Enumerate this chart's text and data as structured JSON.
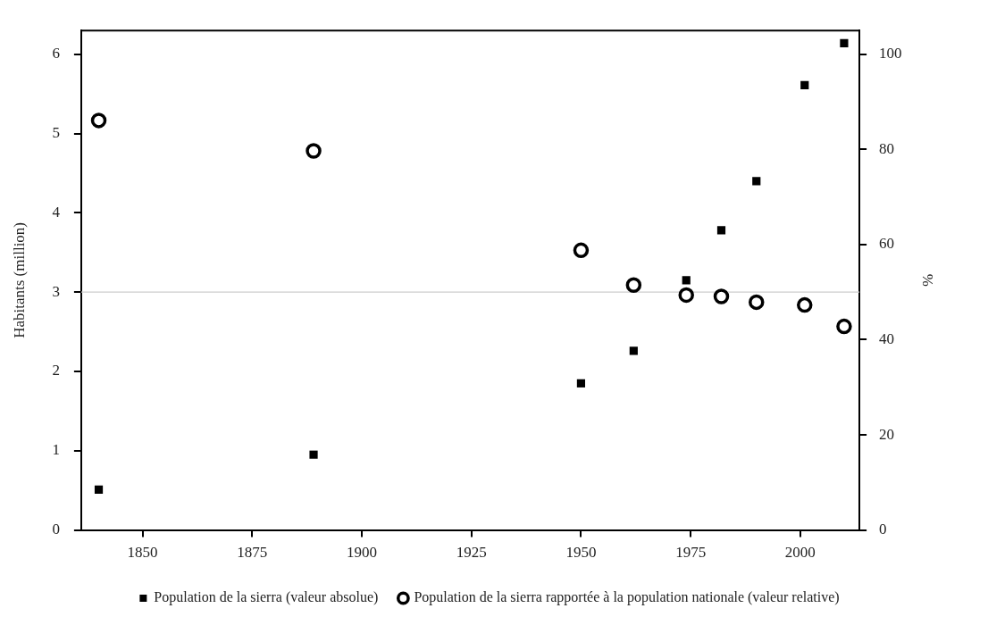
{
  "chart_data": {
    "type": "scatter",
    "xlabel": null,
    "ylabel": "Habitants (million)",
    "y2label": "%",
    "x": [
      1840,
      1889,
      1950,
      1962,
      1974,
      1982,
      1990,
      2001,
      2010
    ],
    "series": [
      {
        "name": "Population de la sierra (valeur absolue)",
        "color": "#000000",
        "marker": "square",
        "values": [
          0.51,
          0.95,
          1.85,
          2.26,
          3.15,
          3.78,
          4.4,
          5.61,
          6.14
        ]
      },
      {
        "name": "Population de la sierra rapportée à la population nationale (valeur relative)",
        "color": "#000000",
        "marker": "circle",
        "axis": "y2",
        "values": [
          86.1,
          79.7,
          58.8,
          51.5,
          49.4,
          49.1,
          47.9,
          47.3,
          42.8
        ]
      }
    ],
    "xlim": [
      1836,
      2013.5
    ],
    "xticks": [
      1850,
      1875,
      1900,
      1925,
      1950,
      1975,
      2000
    ],
    "ylim": [
      0,
      6.3
    ],
    "yticks": [
      0,
      1,
      2,
      3,
      4,
      5,
      6
    ],
    "y2lim": [
      0,
      105
    ],
    "y2ticks": [
      0,
      20,
      40,
      60,
      80,
      100
    ],
    "ref_lines": [
      {
        "axis": "y",
        "value": 3,
        "color": "#cccccc"
      }
    ],
    "grid": false,
    "legend": "bottom"
  }
}
